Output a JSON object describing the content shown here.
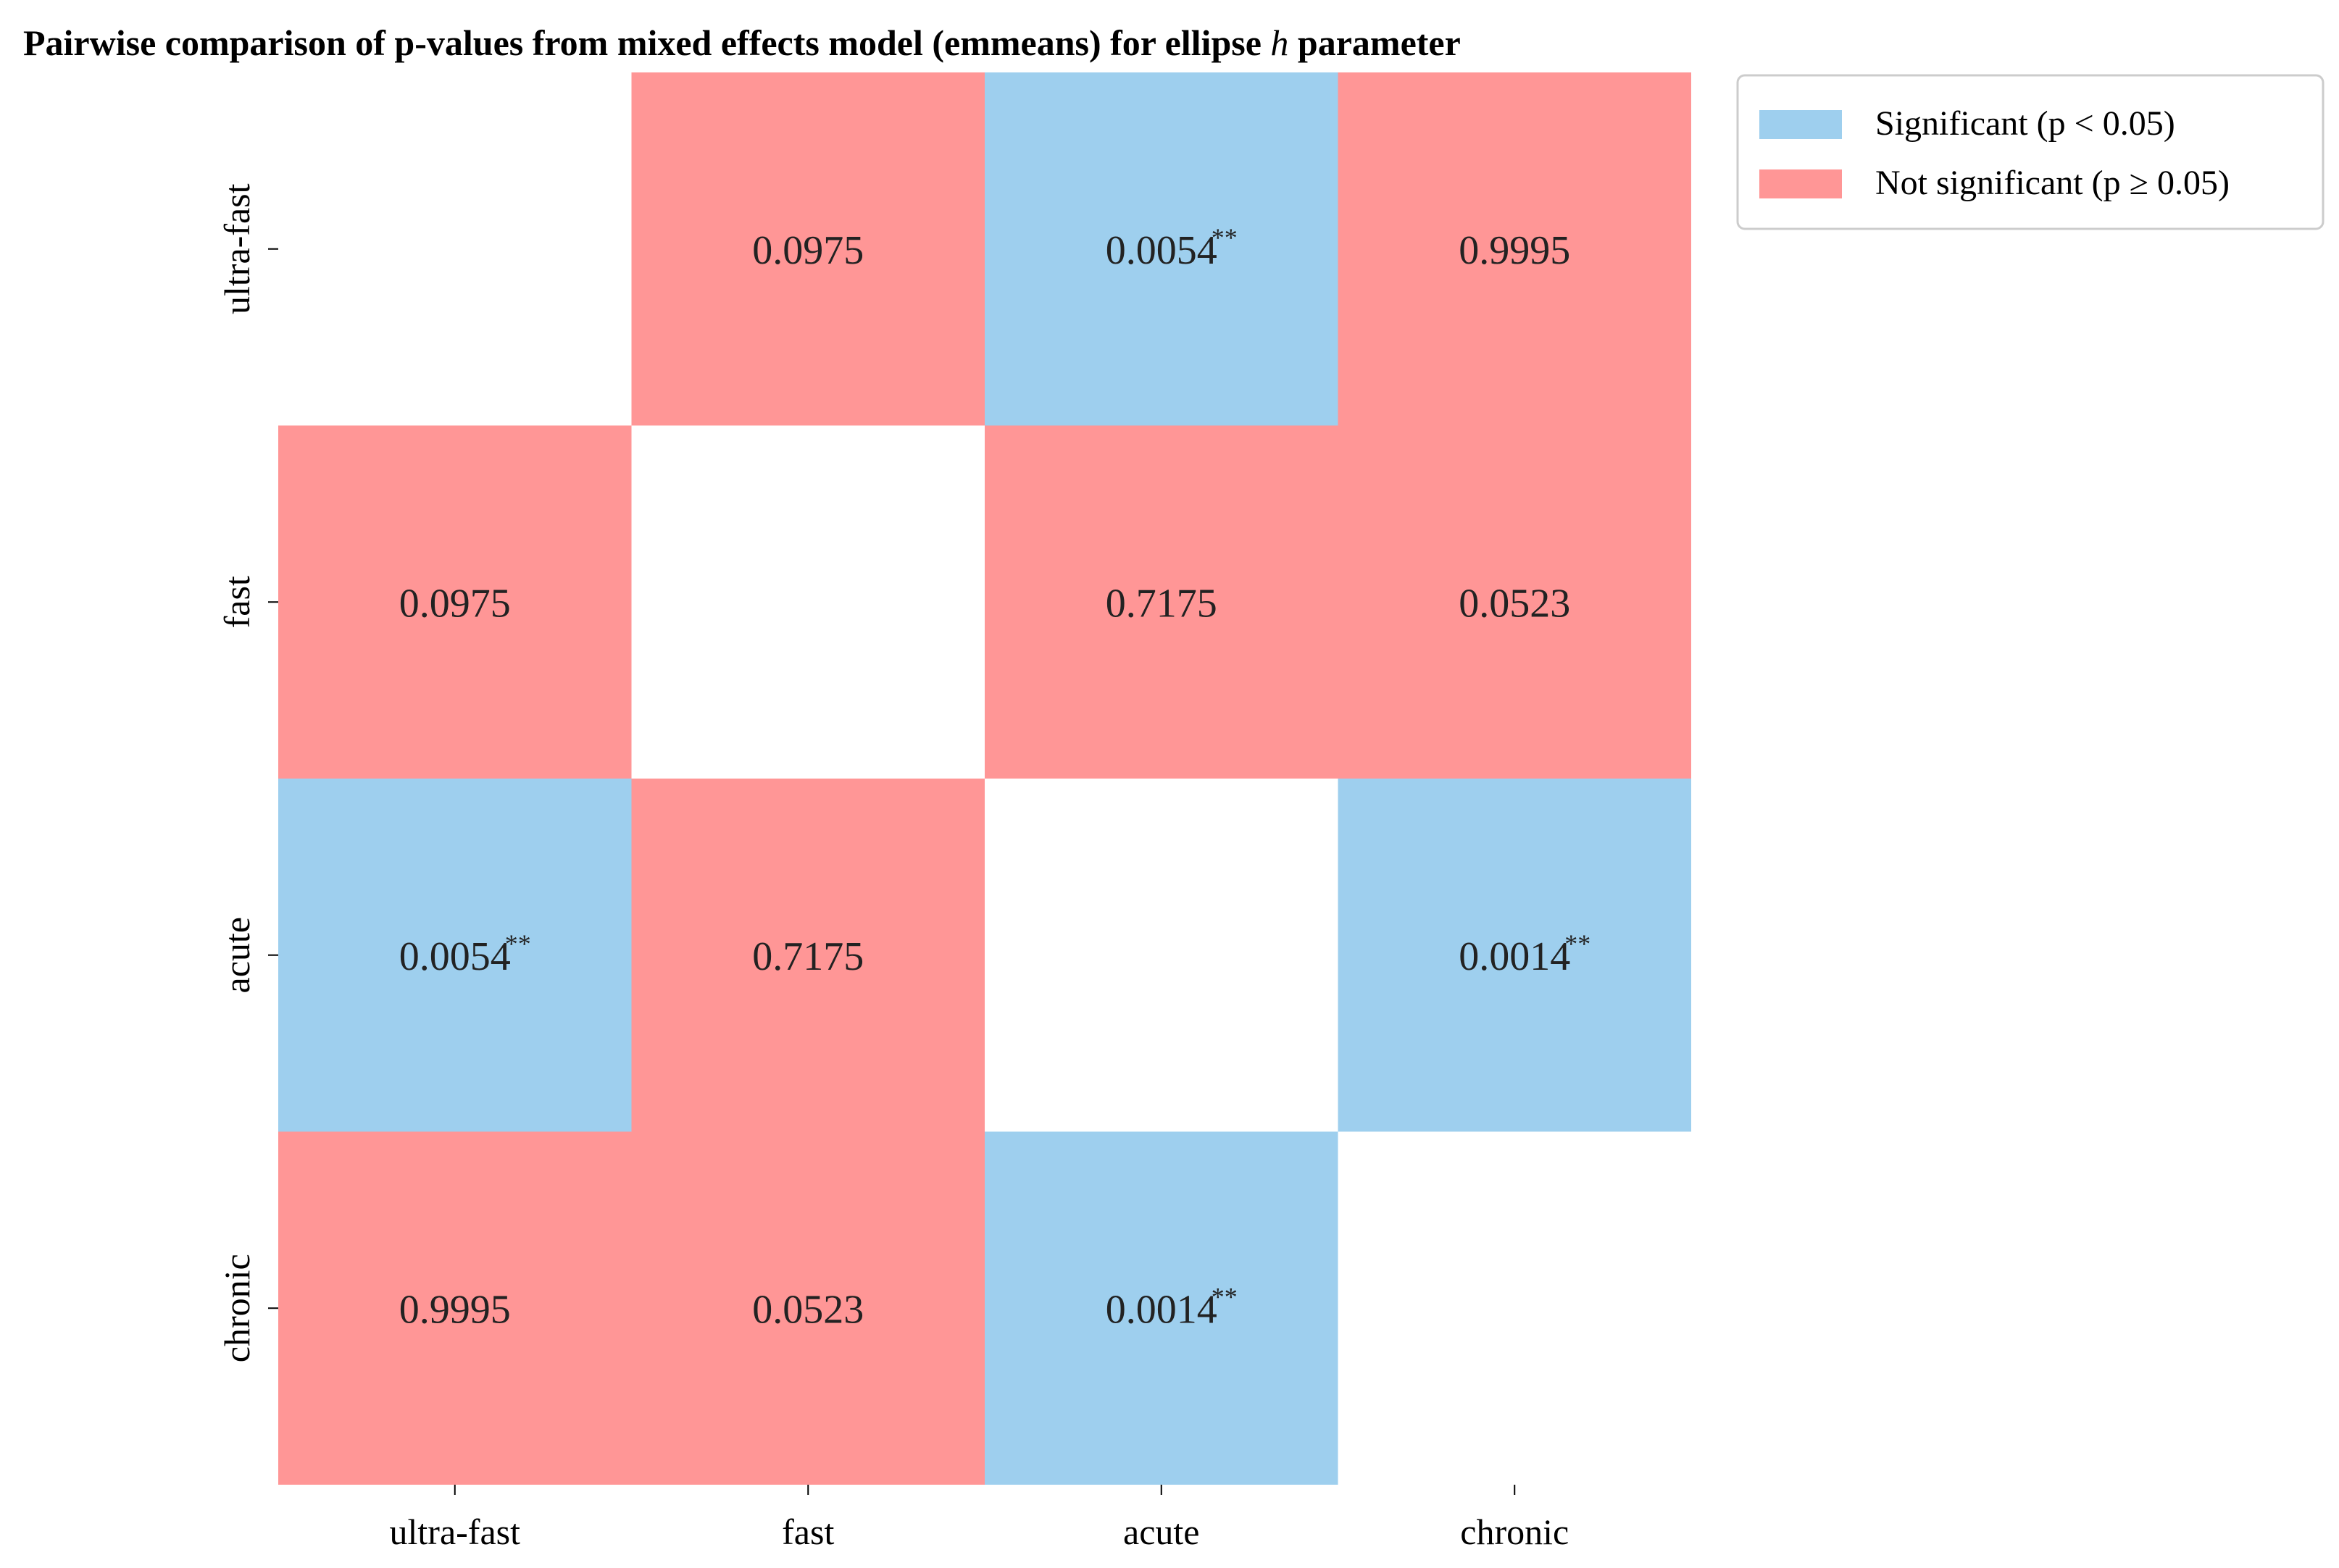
{
  "chart_data": {
    "type": "heatmap",
    "title_parts": {
      "before": "Pairwise comparison of p-values from mixed effects model (emmeans) for ellipse ",
      "italic": "h",
      "after": " parameter"
    },
    "rows": [
      "ultra-fast",
      "fast",
      "acute",
      "chronic"
    ],
    "columns": [
      "ultra-fast",
      "fast",
      "acute",
      "chronic"
    ],
    "cells": [
      [
        null,
        {
          "value": "0.0975",
          "stars": "",
          "significant": false
        },
        {
          "value": "0.0054",
          "stars": "**",
          "significant": true
        },
        {
          "value": "0.9995",
          "stars": "",
          "significant": false
        }
      ],
      [
        {
          "value": "0.0975",
          "stars": "",
          "significant": false
        },
        null,
        {
          "value": "0.7175",
          "stars": "",
          "significant": false
        },
        {
          "value": "0.0523",
          "stars": "",
          "significant": false
        }
      ],
      [
        {
          "value": "0.0054",
          "stars": "**",
          "significant": true
        },
        {
          "value": "0.7175",
          "stars": "",
          "significant": false
        },
        null,
        {
          "value": "0.0014",
          "stars": "**",
          "significant": true
        }
      ],
      [
        {
          "value": "0.9995",
          "stars": "",
          "significant": false
        },
        {
          "value": "0.0523",
          "stars": "",
          "significant": false
        },
        {
          "value": "0.0014",
          "stars": "**",
          "significant": true
        },
        null
      ]
    ],
    "colors": {
      "significant": "#9ecfee",
      "not_significant": "#ff9696"
    },
    "legend": {
      "placement": "upper-right-outside",
      "entries": [
        {
          "label": "Significant (p < 0.05)",
          "color_key": "significant"
        },
        {
          "label": "Not significant (p ≥ 0.05)",
          "color_key": "not_significant"
        }
      ]
    }
  }
}
